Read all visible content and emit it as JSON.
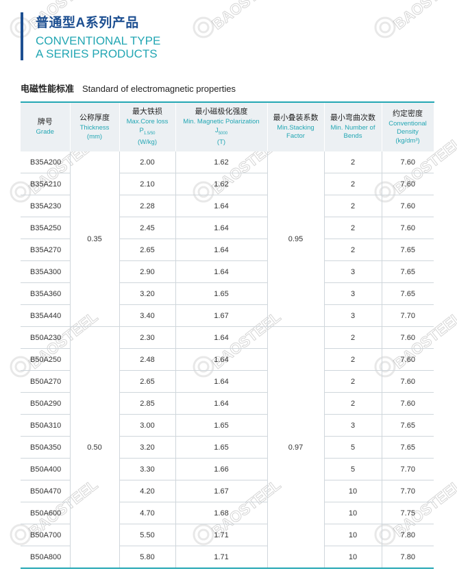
{
  "header": {
    "title_cn": "普通型A系列产品",
    "title_en_line1": "CONVENTIONAL TYPE",
    "title_en_line2": "A SERIES PRODUCTS"
  },
  "section": {
    "title_cn": "电磁性能标准",
    "title_en": "Standard of electromagnetic properties"
  },
  "watermark": {
    "text": "BAOSTEEL"
  },
  "table": {
    "headers": [
      {
        "cn": "牌号",
        "en": "Grade",
        "unit": ""
      },
      {
        "cn": "公称厚度",
        "en": "Thickness",
        "unit": "(mm)"
      },
      {
        "cn": "最大铁损",
        "en": "Max.Core loss",
        "sym": "P",
        "sub": "1.5/50",
        "unit": "(W/kg)"
      },
      {
        "cn": "最小磁极化强度",
        "en": "Min. Magnetic Polarization",
        "sym": "J",
        "sub": "5000",
        "unit": "(T)"
      },
      {
        "cn": "最小叠装系数",
        "en": "Min.Stacking Factor",
        "unit": ""
      },
      {
        "cn": "最小弯曲次数",
        "en": "Min. Number of Bends",
        "unit": ""
      },
      {
        "cn": "约定密度",
        "en": "Conventional Density",
        "unit": "(kg/dm³)"
      }
    ],
    "groups": [
      {
        "thickness": "0.35",
        "stacking": "0.95",
        "rows": [
          [
            "B35A200",
            "2.00",
            "1.62",
            "2",
            "7.60"
          ],
          [
            "B35A210",
            "2.10",
            "1.62",
            "2",
            "7.60"
          ],
          [
            "B35A230",
            "2.28",
            "1.64",
            "2",
            "7.60"
          ],
          [
            "B35A250",
            "2.45",
            "1.64",
            "2",
            "7.60"
          ],
          [
            "B35A270",
            "2.65",
            "1.64",
            "2",
            "7.65"
          ],
          [
            "B35A300",
            "2.90",
            "1.64",
            "3",
            "7.65"
          ],
          [
            "B35A360",
            "3.20",
            "1.65",
            "3",
            "7.65"
          ],
          [
            "B35A440",
            "3.40",
            "1.67",
            "3",
            "7.70"
          ]
        ]
      },
      {
        "thickness": "0.50",
        "stacking": "0.97",
        "rows": [
          [
            "B50A230",
            "2.30",
            "1.64",
            "2",
            "7.60"
          ],
          [
            "B50A250",
            "2.48",
            "1.64",
            "2",
            "7.60"
          ],
          [
            "B50A270",
            "2.65",
            "1.64",
            "2",
            "7.60"
          ],
          [
            "B50A290",
            "2.85",
            "1.64",
            "2",
            "7.60"
          ],
          [
            "B50A310",
            "3.00",
            "1.65",
            "3",
            "7.65"
          ],
          [
            "B50A350",
            "3.20",
            "1.65",
            "5",
            "7.65"
          ],
          [
            "B50A400",
            "3.30",
            "1.66",
            "5",
            "7.70"
          ],
          [
            "B50A470",
            "4.20",
            "1.67",
            "10",
            "7.70"
          ],
          [
            "B50A600",
            "4.70",
            "1.68",
            "10",
            "7.75"
          ],
          [
            "B50A700",
            "5.50",
            "1.71",
            "10",
            "7.80"
          ],
          [
            "B50A800",
            "5.80",
            "1.71",
            "10",
            "7.80"
          ]
        ]
      }
    ]
  },
  "colors": {
    "brand_blue": "#1d4f91",
    "teal": "#22a6b3",
    "header_bg": "#ecf0f3"
  }
}
